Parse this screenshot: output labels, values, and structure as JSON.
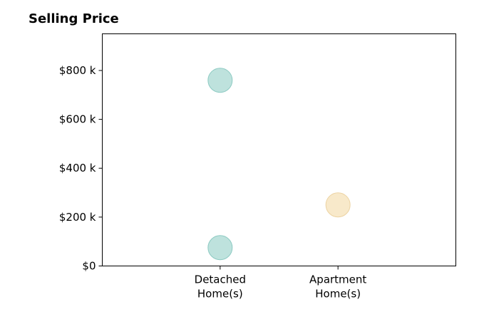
{
  "chart_data": {
    "type": "scatter",
    "title": "Selling Price",
    "xlabel": "",
    "ylabel": "",
    "categories": [
      [
        "Detached",
        "Home(s)"
      ],
      [
        "Apartment",
        "Home(s)"
      ]
    ],
    "xlim": [
      -1,
      2
    ],
    "ylim": [
      0,
      950
    ],
    "yticks": [
      0,
      200,
      400,
      600,
      800
    ],
    "ytick_labels": [
      "$0",
      "$200 k",
      "$400 k",
      "$600 k",
      "$800 k"
    ],
    "grid": false,
    "points": [
      {
        "category_index": 0,
        "y": 760,
        "color": "#a8d8d2"
      },
      {
        "category_index": 0,
        "y": 75,
        "color": "#a8d8d2"
      },
      {
        "category_index": 1,
        "y": 250,
        "color": "#f5e1b8"
      }
    ],
    "colors": {
      "detached": "#a8d8d2",
      "detached_edge": "#8ccac2",
      "apartment": "#f5e1b8",
      "apartment_edge": "#ecd3a2"
    }
  }
}
